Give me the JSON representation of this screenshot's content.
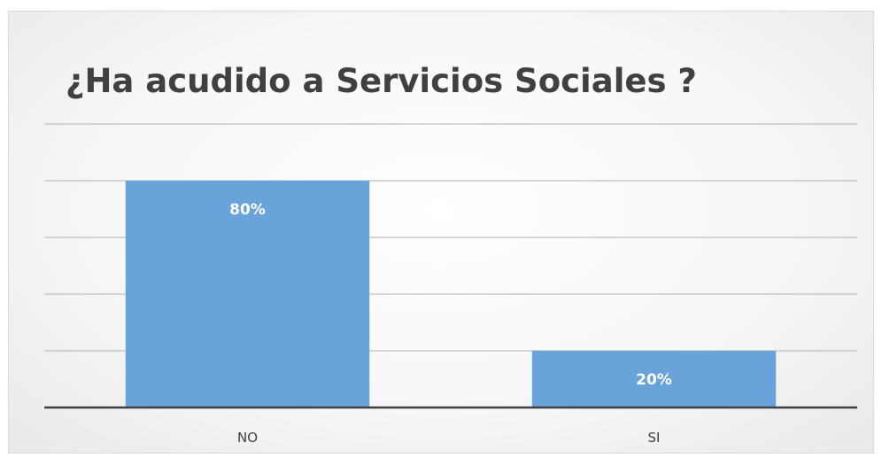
{
  "chart_data": {
    "type": "bar",
    "title": "¿Ha acudido a Servicios Sociales ?",
    "categories": [
      "NO",
      "SI"
    ],
    "values": [
      80,
      20
    ],
    "value_labels": [
      "80%",
      "20%"
    ],
    "ylim": [
      0,
      100
    ],
    "y_gridline_step": 20,
    "grid": true,
    "legend": "none",
    "bar_color": "#6aa3d9",
    "gridline_color": "#c8c8c8",
    "axis_color": "#404040"
  }
}
